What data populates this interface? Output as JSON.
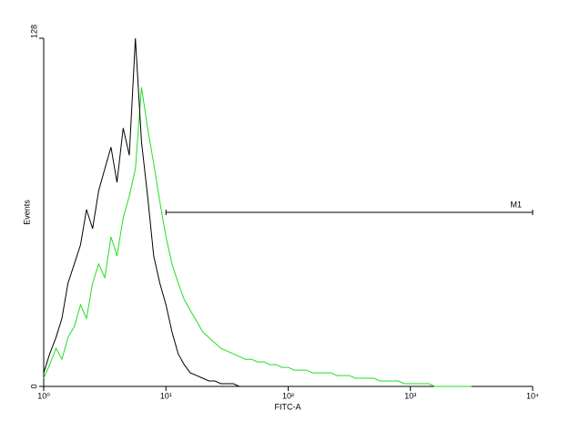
{
  "chart_data": {
    "type": "histogram-line",
    "xlabel": "FITC-A",
    "ylabel": "Events",
    "xscale": "log",
    "xlim": [
      1,
      10000
    ],
    "xticks": [
      {
        "value": 1,
        "label": "10⁰"
      },
      {
        "value": 10,
        "label": "10¹"
      },
      {
        "value": 100,
        "label": "10²"
      },
      {
        "value": 1000,
        "label": "10³"
      },
      {
        "value": 10000,
        "label": "10⁴"
      }
    ],
    "ylim": [
      0,
      128
    ],
    "yticks": [
      0,
      128
    ],
    "x": [
      1,
      1.12,
      1.26,
      1.41,
      1.58,
      1.78,
      2,
      2.24,
      2.51,
      2.82,
      3.16,
      3.55,
      3.98,
      4.47,
      5.01,
      5.62,
      6.31,
      7.08,
      7.94,
      8.91,
      10,
      11.2,
      12.6,
      14.1,
      15.8,
      17.8,
      20,
      22.4,
      25.1,
      28.2,
      31.6,
      35.5,
      39.8,
      44.7,
      50.1,
      56.2,
      63.1,
      70.8,
      79.4,
      89.1,
      100,
      112,
      126,
      141,
      158,
      178,
      200,
      224,
      251,
      282,
      316,
      355,
      398,
      447,
      501,
      562,
      631,
      708,
      794,
      891,
      1000,
      1120,
      1260,
      1410,
      1580,
      1780,
      2000,
      2240,
      2510,
      2820,
      3160
    ],
    "series": [
      {
        "color": "#000000",
        "values": [
          5,
          12,
          18,
          25,
          38,
          45,
          52,
          65,
          58,
          72,
          80,
          88,
          75,
          95,
          85,
          128,
          90,
          70,
          48,
          38,
          30,
          20,
          12,
          8,
          5,
          4,
          3,
          2,
          2,
          1,
          1,
          1,
          0,
          0,
          0,
          null,
          null,
          null,
          null,
          null,
          null,
          null,
          null,
          null,
          null,
          null,
          null,
          null,
          null,
          null,
          null,
          null,
          null,
          null,
          null,
          null,
          null,
          null,
          null,
          null,
          null,
          null,
          null,
          null,
          null,
          null,
          null,
          null,
          null,
          null,
          null
        ]
      },
      {
        "color": "#22dd22",
        "values": [
          3,
          8,
          14,
          10,
          18,
          22,
          30,
          25,
          38,
          45,
          40,
          55,
          48,
          62,
          70,
          80,
          110,
          95,
          82,
          68,
          55,
          45,
          38,
          32,
          28,
          24,
          20,
          18,
          16,
          14,
          13,
          12,
          11,
          10,
          10,
          9,
          9,
          8,
          8,
          7,
          7,
          6,
          6,
          6,
          5,
          5,
          5,
          5,
          4,
          4,
          4,
          3,
          3,
          3,
          3,
          2,
          2,
          2,
          2,
          1,
          1,
          1,
          1,
          1,
          0,
          0,
          0,
          0,
          0,
          0,
          0
        ]
      }
    ],
    "markers": [
      {
        "label": "M1",
        "range": [
          10,
          10000
        ]
      }
    ]
  }
}
